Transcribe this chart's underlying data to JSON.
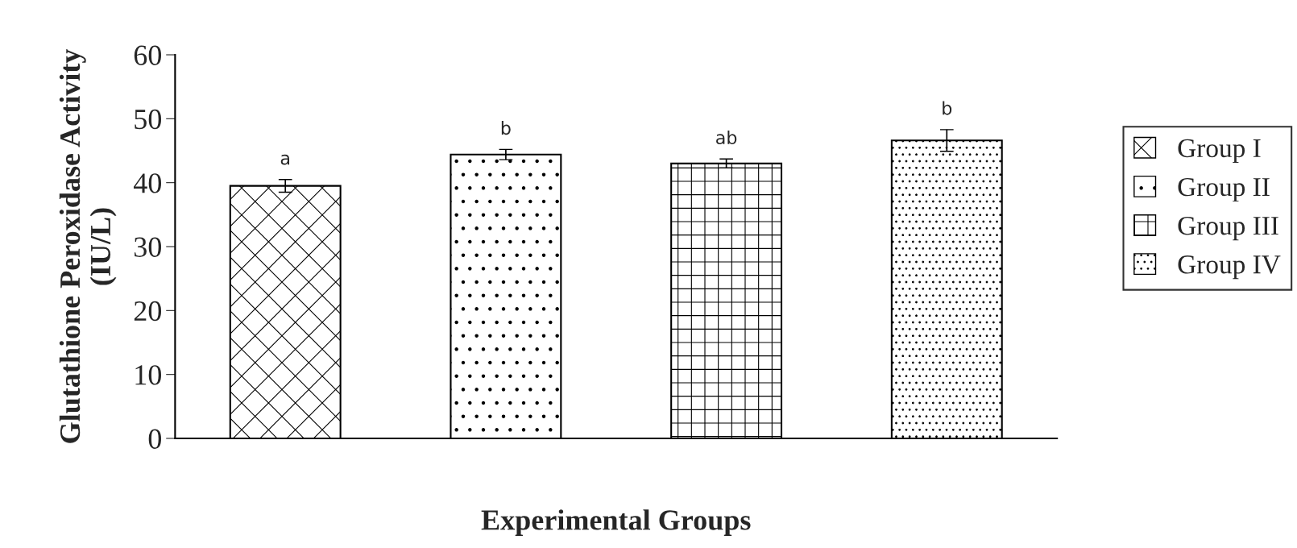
{
  "chart_data": {
    "type": "bar",
    "ylabel": "Glutathione Peroxidase Activity\n(IU/L)",
    "xlabel": "Experimental Groups",
    "categories": [
      null,
      null,
      null,
      null
    ],
    "series": [
      {
        "name": "Group I",
        "color": "#000000",
        "values": [
          39.5,
          null,
          null,
          null
        ],
        "errors": [
          1.0,
          null,
          null,
          null
        ]
      },
      {
        "name": "Group II",
        "color": "#000000",
        "values": [
          null,
          44.4,
          null,
          null
        ],
        "errors": [
          null,
          0.8,
          null,
          null
        ]
      },
      {
        "name": "Group III",
        "color": "#000000",
        "values": [
          null,
          null,
          43.0,
          null
        ],
        "errors": [
          null,
          null,
          0.7,
          null
        ]
      },
      {
        "name": "Group IV",
        "color": "#000000",
        "values": [
          null,
          null,
          null,
          46.6
        ],
        "errors": [
          null,
          null,
          null,
          1.7
        ]
      }
    ],
    "annotations": [
      "a",
      "b",
      "ab",
      "b"
    ],
    "ylim": [
      0,
      60
    ],
    "yticks": [
      0,
      10,
      20,
      30,
      40,
      50,
      60
    ],
    "grid": false,
    "legend": "right"
  }
}
